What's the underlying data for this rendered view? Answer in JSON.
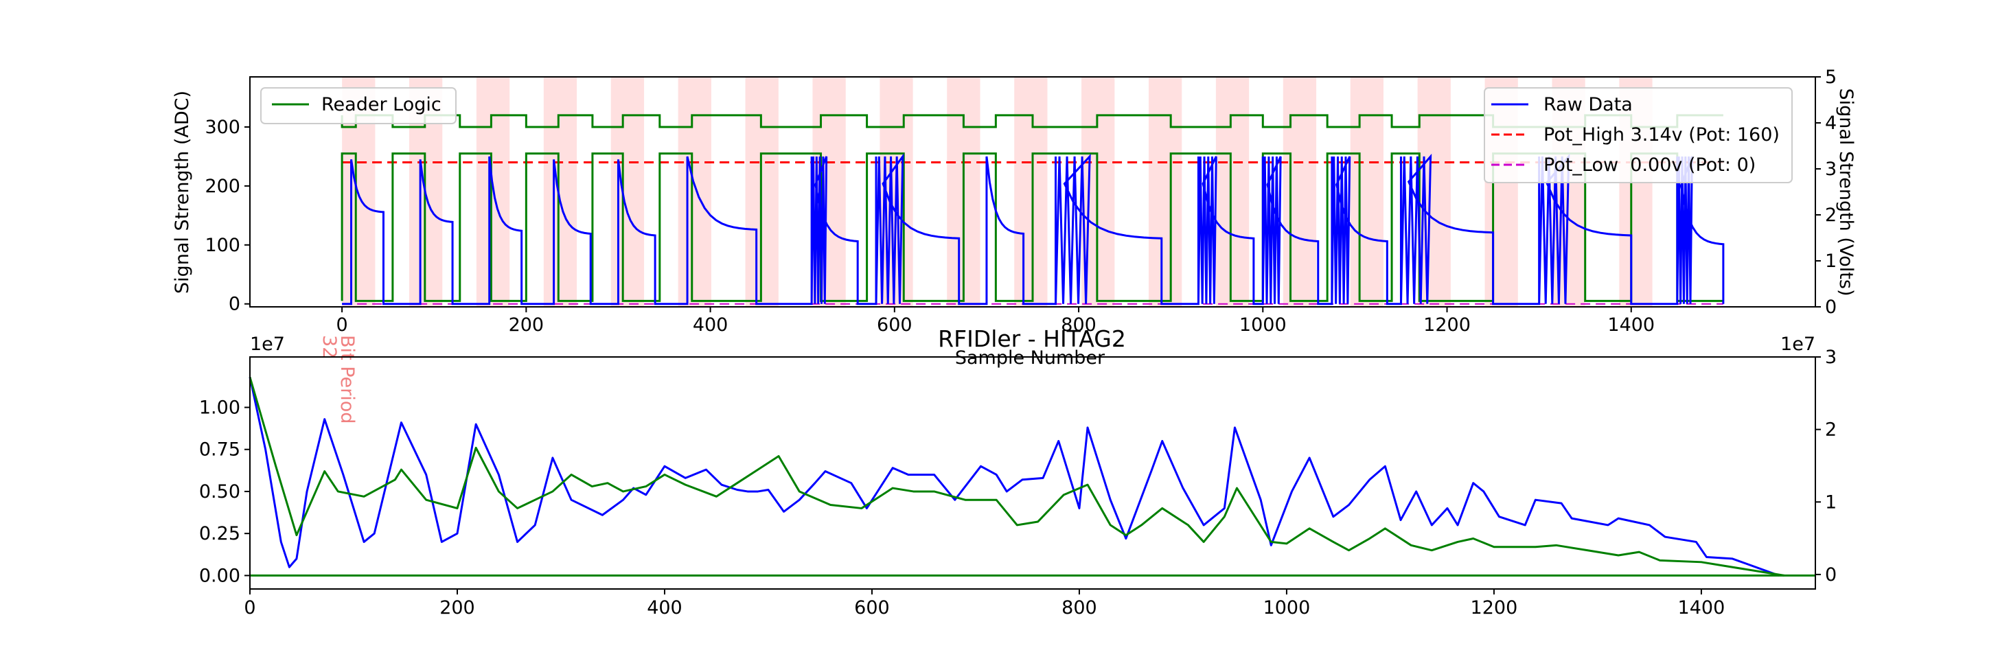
{
  "chart_data": [
    {
      "type": "line",
      "title": "",
      "xlabel": "Sample Number",
      "ylabel": "Signal Strength (ADC)",
      "y2label": "Signal Strength (Volts)",
      "xlim": [
        -100,
        1600
      ],
      "ylim": [
        -5,
        385
      ],
      "y2lim": [
        0,
        5
      ],
      "xticks": [
        0,
        200,
        400,
        600,
        800,
        1000,
        1200,
        1400
      ],
      "yticks": [
        0,
        100,
        200,
        300
      ],
      "y2ticks": [
        0,
        1,
        2,
        3,
        4,
        5
      ],
      "bit_period_label": "Bit Period",
      "bit_period_value": "32",
      "shaded_bands_start": [
        0,
        73,
        146,
        219,
        292,
        365,
        438,
        511,
        584,
        657,
        730,
        803,
        876,
        949,
        1022,
        1095,
        1168,
        1241,
        1314,
        1387
      ],
      "shaded_band_width": 36,
      "legend_left": {
        "placement": "upper-left",
        "entries": [
          "Reader Logic"
        ]
      },
      "legend_right": {
        "placement": "upper-right",
        "entries": [
          "Raw Data",
          "Pot_High 3.14v (Pot: 160)",
          "Pot_Low  0.00v (Pot: 0)"
        ]
      },
      "series": [
        {
          "name": "Raw Data",
          "color": "#0000ff",
          "style": "solid"
        },
        {
          "name": "Reader Logic",
          "color": "#008000",
          "style": "solid"
        },
        {
          "name": "Pot_High 3.14v (Pot: 160)",
          "color": "#ff0000",
          "style": "dashed",
          "value_adc": 240
        },
        {
          "name": "Pot_Low  0.00v (Pot: 0)",
          "color": "#cc00cc",
          "style": "dashed",
          "value_adc": 0
        }
      ],
      "pulses": [
        {
          "x0": 10,
          "x1": 45,
          "peak": 245,
          "settle": 155,
          "burst": false
        },
        {
          "x0": 85,
          "x1": 120,
          "peak": 245,
          "settle": 138,
          "burst": false
        },
        {
          "x0": 160,
          "x1": 195,
          "peak": 250,
          "settle": 123,
          "burst": false
        },
        {
          "x0": 230,
          "x1": 270,
          "peak": 245,
          "settle": 118,
          "burst": false
        },
        {
          "x0": 300,
          "x1": 340,
          "peak": 245,
          "settle": 115,
          "burst": false
        },
        {
          "x0": 375,
          "x1": 450,
          "peak": 250,
          "settle": 125,
          "burst": false
        },
        {
          "x0": 510,
          "x1": 560,
          "peak": 250,
          "settle": 105,
          "burst": true
        },
        {
          "x0": 580,
          "x1": 670,
          "peak": 250,
          "settle": 110,
          "burst": true
        },
        {
          "x0": 700,
          "x1": 740,
          "peak": 250,
          "settle": 118,
          "burst": false
        },
        {
          "x0": 775,
          "x1": 890,
          "peak": 250,
          "settle": 110,
          "burst": true
        },
        {
          "x0": 930,
          "x1": 990,
          "peak": 250,
          "settle": 110,
          "burst": true
        },
        {
          "x0": 1000,
          "x1": 1060,
          "peak": 250,
          "settle": 105,
          "burst": true
        },
        {
          "x0": 1075,
          "x1": 1135,
          "peak": 250,
          "settle": 105,
          "burst": true
        },
        {
          "x0": 1150,
          "x1": 1250,
          "peak": 250,
          "settle": 120,
          "burst": true
        },
        {
          "x0": 1300,
          "x1": 1400,
          "peak": 250,
          "settle": 115,
          "burst": true
        },
        {
          "x0": 1450,
          "x1": 1500,
          "peak": 250,
          "settle": 100,
          "burst": true
        }
      ],
      "reader_logic_segments": [
        [
          0,
          15
        ],
        [
          55,
          90
        ],
        [
          128,
          162
        ],
        [
          200,
          235
        ],
        [
          272,
          305
        ],
        [
          345,
          380
        ],
        [
          455,
          520
        ],
        [
          570,
          610
        ],
        [
          675,
          710
        ],
        [
          750,
          820
        ],
        [
          900,
          965
        ],
        [
          1000,
          1030
        ],
        [
          1070,
          1105
        ],
        [
          1140,
          1170
        ],
        [
          1250,
          1350
        ],
        [
          1400,
          1450
        ]
      ]
    },
    {
      "type": "line",
      "title": "RFIDler - HITAG2",
      "xlabel": "",
      "ylabel": "",
      "x_axis_offset": "1e7",
      "y_axis_offset": "1e7",
      "xlim": [
        0,
        1510
      ],
      "ylim": [
        -0.08,
        1.3
      ],
      "y2lim": [
        -0.2,
        3
      ],
      "xticks": [
        0,
        200,
        400,
        600,
        800,
        1000,
        1200,
        1400
      ],
      "yticks": [
        0.0,
        0.25,
        0.5,
        0.75,
        1.0
      ],
      "ytick_labels": [
        "0.00",
        "0.25",
        "0.50",
        "0.75",
        "1.00"
      ],
      "y2ticks": [
        0,
        1,
        2,
        3
      ],
      "series": [
        {
          "name": "",
          "color": "#0000ff",
          "x": [
            0,
            15,
            30,
            38,
            45,
            55,
            72,
            90,
            110,
            120,
            146,
            170,
            185,
            200,
            218,
            240,
            258,
            275,
            292,
            310,
            340,
            360,
            370,
            382,
            400,
            420,
            440,
            455,
            470,
            480,
            490,
            500,
            515,
            530,
            545,
            555,
            580,
            595,
            620,
            635,
            660,
            680,
            705,
            720,
            730,
            745,
            765,
            780,
            800,
            808,
            830,
            845,
            870,
            880,
            900,
            920,
            940,
            950,
            975,
            985,
            1005,
            1022,
            1045,
            1060,
            1080,
            1095,
            1110,
            1125,
            1140,
            1155,
            1165,
            1180,
            1190,
            1205,
            1230,
            1240,
            1265,
            1275,
            1310,
            1320,
            1350,
            1365,
            1395,
            1405,
            1430,
            1475
          ],
          "y": [
            1.18,
            0.75,
            0.2,
            0.05,
            0.1,
            0.5,
            0.93,
            0.6,
            0.2,
            0.25,
            0.91,
            0.6,
            0.2,
            0.25,
            0.9,
            0.6,
            0.2,
            0.3,
            0.7,
            0.45,
            0.36,
            0.45,
            0.52,
            0.48,
            0.65,
            0.58,
            0.63,
            0.54,
            0.51,
            0.5,
            0.5,
            0.51,
            0.38,
            0.45,
            0.55,
            0.62,
            0.55,
            0.4,
            0.64,
            0.6,
            0.6,
            0.45,
            0.65,
            0.6,
            0.5,
            0.57,
            0.58,
            0.8,
            0.4,
            0.88,
            0.45,
            0.22,
            0.63,
            0.8,
            0.52,
            0.3,
            0.4,
            0.88,
            0.45,
            0.18,
            0.5,
            0.7,
            0.35,
            0.42,
            0.57,
            0.65,
            0.33,
            0.5,
            0.3,
            0.4,
            0.3,
            0.55,
            0.5,
            0.35,
            0.3,
            0.45,
            0.43,
            0.34,
            0.3,
            0.34,
            0.3,
            0.23,
            0.2,
            0.11,
            0.1,
            0.0
          ]
        },
        {
          "name": "",
          "color": "#008000",
          "x": [
            0,
            25,
            45,
            72,
            85,
            110,
            140,
            146,
            170,
            200,
            218,
            240,
            258,
            275,
            292,
            310,
            330,
            345,
            360,
            382,
            400,
            420,
            450,
            470,
            490,
            510,
            530,
            560,
            590,
            620,
            640,
            660,
            690,
            720,
            740,
            760,
            785,
            808,
            830,
            845,
            860,
            880,
            905,
            920,
            940,
            952,
            985,
            1000,
            1022,
            1045,
            1060,
            1080,
            1095,
            1120,
            1140,
            1165,
            1180,
            1200,
            1240,
            1260,
            1290,
            1320,
            1340,
            1360,
            1400,
            1420,
            1480
          ],
          "y": [
            1.18,
            0.65,
            0.24,
            0.62,
            0.5,
            0.47,
            0.57,
            0.63,
            0.45,
            0.4,
            0.76,
            0.5,
            0.4,
            0.45,
            0.5,
            0.6,
            0.53,
            0.55,
            0.5,
            0.53,
            0.6,
            0.54,
            0.47,
            0.55,
            0.63,
            0.71,
            0.5,
            0.42,
            0.4,
            0.52,
            0.5,
            0.5,
            0.45,
            0.45,
            0.3,
            0.32,
            0.48,
            0.54,
            0.3,
            0.24,
            0.3,
            0.4,
            0.3,
            0.2,
            0.35,
            0.52,
            0.2,
            0.19,
            0.28,
            0.2,
            0.15,
            0.22,
            0.28,
            0.18,
            0.15,
            0.2,
            0.22,
            0.17,
            0.17,
            0.18,
            0.15,
            0.12,
            0.14,
            0.09,
            0.08,
            0.06,
            0.0
          ]
        },
        {
          "name": "",
          "color": "#008000",
          "x": [
            0,
            1510
          ],
          "y": [
            0.0,
            0.0
          ]
        }
      ]
    }
  ]
}
